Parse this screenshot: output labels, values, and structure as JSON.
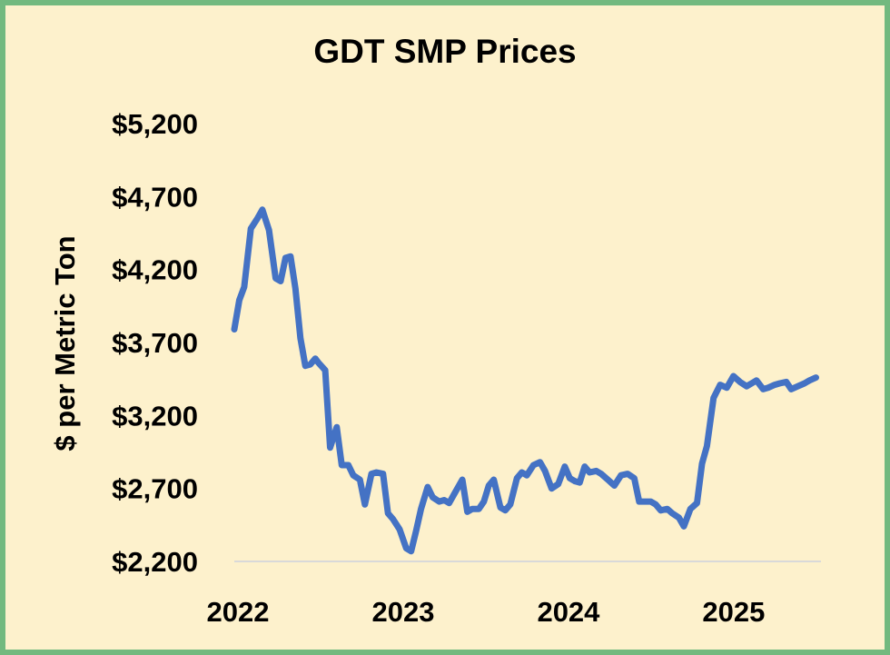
{
  "chart_data": {
    "type": "line",
    "title": "GDT SMP Prices",
    "xlabel": "",
    "ylabel": "$ per Metric Ton",
    "ylim": [
      2200,
      5200
    ],
    "yticks": [
      2200,
      2700,
      3200,
      3700,
      4200,
      4700,
      5200
    ],
    "ytick_labels": [
      "$2,200",
      "$2,700",
      "$3,200",
      "$3,700",
      "$4,200",
      "$4,700",
      "$5,200"
    ],
    "xlim": [
      2022.0,
      2025.55
    ],
    "xticks": [
      2022,
      2023,
      2024,
      2025
    ],
    "xtick_labels": [
      "2022",
      "2023",
      "2024",
      "2025"
    ],
    "grid": false,
    "legend": "none",
    "line_color": "#4472c4",
    "series": [
      {
        "x": [
          2022.0,
          2022.03,
          2022.06,
          2022.1,
          2022.14,
          2022.17,
          2022.21,
          2022.25,
          2022.28,
          2022.31,
          2022.34,
          2022.37,
          2022.4,
          2022.43,
          2022.46,
          2022.49,
          2022.51,
          2022.55,
          2022.58,
          2022.62,
          2022.65,
          2022.69,
          2022.72,
          2022.76,
          2022.79,
          2022.83,
          2022.86,
          2022.9,
          2022.93,
          2022.96,
          2023.0,
          2023.04,
          2023.07,
          2023.1,
          2023.13,
          2023.17,
          2023.2,
          2023.24,
          2023.27,
          2023.3,
          2023.34,
          2023.38,
          2023.41,
          2023.44,
          2023.48,
          2023.51,
          2023.54,
          2023.57,
          2023.61,
          2023.64,
          2023.67,
          2023.71,
          2023.74,
          2023.77,
          2023.81,
          2023.85,
          2023.88,
          2023.92,
          2023.96,
          2024.0,
          2024.03,
          2024.06,
          2024.09,
          2024.12,
          2024.15,
          2024.19,
          2024.22,
          2024.26,
          2024.3,
          2024.34,
          2024.38,
          2024.42,
          2024.45,
          2024.48,
          2024.52,
          2024.55,
          2024.58,
          2024.62,
          2024.65,
          2024.69,
          2024.72,
          2024.76,
          2024.8,
          2024.83,
          2024.86,
          2024.9,
          2024.94,
          2024.98,
          2025.02,
          2025.06,
          2025.1,
          2025.13,
          2025.16,
          2025.2,
          2025.23,
          2025.27,
          2025.3,
          2025.34,
          2025.37,
          2025.41,
          2025.45,
          2025.48,
          2025.52
        ],
        "values": [
          3790,
          3990,
          4080,
          4480,
          4550,
          4610,
          4470,
          4140,
          4120,
          4280,
          4290,
          4070,
          3730,
          3540,
          3550,
          3590,
          3560,
          3510,
          2980,
          3120,
          2860,
          2860,
          2790,
          2760,
          2590,
          2800,
          2810,
          2800,
          2530,
          2490,
          2420,
          2290,
          2270,
          2410,
          2560,
          2710,
          2640,
          2610,
          2620,
          2600,
          2680,
          2760,
          2540,
          2560,
          2560,
          2610,
          2720,
          2760,
          2570,
          2550,
          2590,
          2770,
          2810,
          2790,
          2860,
          2880,
          2820,
          2700,
          2730,
          2850,
          2770,
          2750,
          2740,
          2850,
          2810,
          2820,
          2800,
          2760,
          2720,
          2790,
          2800,
          2770,
          2610,
          2610,
          2610,
          2590,
          2550,
          2560,
          2530,
          2500,
          2440,
          2560,
          2600,
          2870,
          2990,
          3320,
          3410,
          3390,
          3470,
          3430,
          3400,
          3420,
          3440,
          3380,
          3390,
          3410,
          3420,
          3430,
          3380,
          3400,
          3420,
          3440,
          3460
        ]
      }
    ]
  }
}
